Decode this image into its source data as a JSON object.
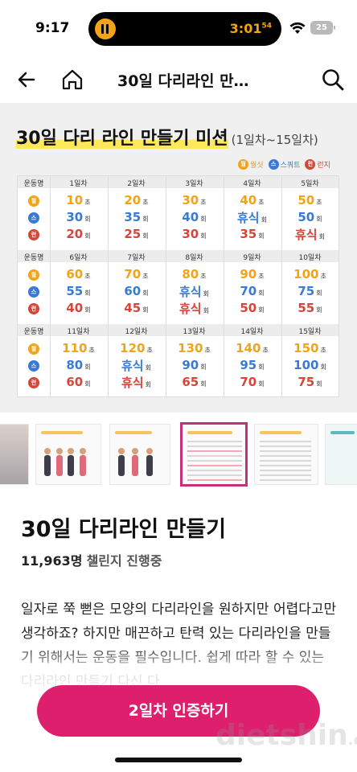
{
  "status": {
    "time": "9:17",
    "timer_main": "3:01",
    "timer_sup": "54",
    "battery": "25"
  },
  "nav": {
    "title": "30일 다리라인 만…"
  },
  "hero": {
    "title": "30일 다리 라인 만들기 미션",
    "subtitle": "(1일차~15일차)",
    "legend": [
      {
        "mark": "월",
        "label": "월싯",
        "kind": "squat"
      },
      {
        "mark": "스",
        "label": "스쿼트",
        "kind": "sprint"
      },
      {
        "mark": "런",
        "label": "런지",
        "kind": "lunge"
      }
    ],
    "row_header": "운동명",
    "row_marks": [
      "월",
      "스",
      "런"
    ],
    "blocks": [
      {
        "days": [
          "1일차",
          "2일차",
          "3일차",
          "4일차",
          "5일차"
        ],
        "rows": [
          [
            {
              "v": "10",
              "u": "초"
            },
            {
              "v": "20",
              "u": "초"
            },
            {
              "v": "30",
              "u": "초"
            },
            {
              "v": "40",
              "u": "초"
            },
            {
              "v": "50",
              "u": "초"
            }
          ],
          [
            {
              "v": "30",
              "u": "회"
            },
            {
              "v": "35",
              "u": "회"
            },
            {
              "v": "40",
              "u": "회"
            },
            {
              "v": "휴식",
              "u": "회"
            },
            {
              "v": "50",
              "u": "회"
            }
          ],
          [
            {
              "v": "20",
              "u": "회"
            },
            {
              "v": "25",
              "u": "회"
            },
            {
              "v": "30",
              "u": "회"
            },
            {
              "v": "35",
              "u": "회"
            },
            {
              "v": "휴식",
              "u": "회"
            }
          ]
        ]
      },
      {
        "days": [
          "6일차",
          "7일차",
          "8일차",
          "9일차",
          "10일차"
        ],
        "rows": [
          [
            {
              "v": "60",
              "u": "초"
            },
            {
              "v": "70",
              "u": "초"
            },
            {
              "v": "80",
              "u": "초"
            },
            {
              "v": "90",
              "u": "초"
            },
            {
              "v": "100",
              "u": "초"
            }
          ],
          [
            {
              "v": "55",
              "u": "회"
            },
            {
              "v": "60",
              "u": "회"
            },
            {
              "v": "휴식",
              "u": "회"
            },
            {
              "v": "70",
              "u": "회"
            },
            {
              "v": "75",
              "u": "회"
            }
          ],
          [
            {
              "v": "40",
              "u": "회"
            },
            {
              "v": "45",
              "u": "회"
            },
            {
              "v": "휴식",
              "u": "회"
            },
            {
              "v": "50",
              "u": "회"
            },
            {
              "v": "55",
              "u": "회"
            }
          ]
        ]
      },
      {
        "days": [
          "11일차",
          "12일차",
          "13일차",
          "14일차",
          "15일차"
        ],
        "rows": [
          [
            {
              "v": "110",
              "u": "초"
            },
            {
              "v": "120",
              "u": "초"
            },
            {
              "v": "130",
              "u": "초"
            },
            {
              "v": "140",
              "u": "초"
            },
            {
              "v": "150",
              "u": "초"
            }
          ],
          [
            {
              "v": "80",
              "u": "회"
            },
            {
              "v": "휴식",
              "u": "회"
            },
            {
              "v": "90",
              "u": "회"
            },
            {
              "v": "95",
              "u": "회"
            },
            {
              "v": "100",
              "u": "회"
            }
          ],
          [
            {
              "v": "60",
              "u": "회"
            },
            {
              "v": "휴식",
              "u": "회"
            },
            {
              "v": "65",
              "u": "회"
            },
            {
              "v": "70",
              "u": "회"
            },
            {
              "v": "75",
              "u": "회"
            }
          ]
        ]
      }
    ]
  },
  "program": {
    "title": "30일 다리라인 만들기",
    "participants_count": "11,963명",
    "participants_text": "챌린지 진행중",
    "description": "일자로 쭉 뻗은 모양의 다리라인을 원하지만 어렵다고만 생각하죠? 하지만 매끈하고 탄력 있는 다리라인을 만들기 위해서는 운동을 필수입니다. 쉽게 따라 할 수 있는 다리라인 만들기 다신 다"
  },
  "cta": {
    "label": "2일차 인증하기"
  },
  "watermark": {
    "main": "dietshin",
    "suffix": ".com"
  }
}
